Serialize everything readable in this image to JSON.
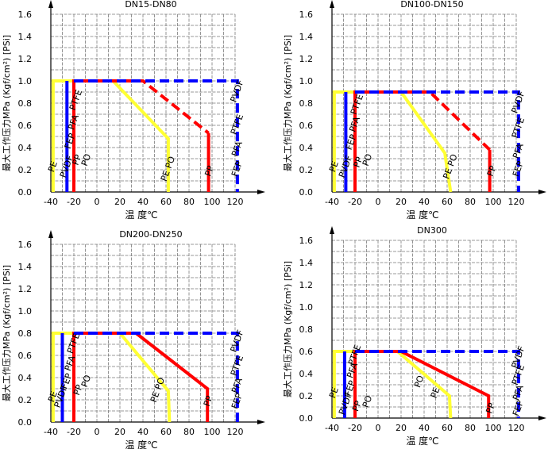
{
  "chart_data": [
    {
      "type": "line",
      "title": "DN15-DN80",
      "xlabel": "温 度℃",
      "ylabel": "最大工作压力MPa (Kgf/cm²) [PSi]",
      "xlim": [
        -40,
        120
      ],
      "ylim": [
        0,
        1.6
      ],
      "x_ticks": [
        "-40",
        "-20",
        "0",
        "20",
        "40",
        "60",
        "80",
        "100",
        "120"
      ],
      "y_ticks": [
        "0.0",
        "0.2",
        "0.4",
        "0.6",
        "0.8",
        "1.0",
        "1.2",
        "1.4",
        "1.6"
      ],
      "grid": true,
      "series": [
        {
          "name": "PE",
          "color": "#ffff33",
          "style": "solid",
          "points": [
            [
              -38,
              0
            ],
            [
              -38,
              1.0
            ],
            [
              -25,
              1.0
            ]
          ]
        },
        {
          "name": "PE",
          "color": "#ffff33",
          "style": "solid",
          "points": [
            [
              -25,
              1.0
            ],
            [
              14,
              1.0
            ],
            [
              62,
              0.48
            ],
            [
              62,
              0
            ]
          ]
        },
        {
          "name": "PVDF",
          "color": "#0000ff",
          "style": "solid",
          "points": [
            [
              -26,
              0
            ],
            [
              -26,
              1.0
            ]
          ]
        },
        {
          "name": "PP PO",
          "color": "#ff0000",
          "style": "solid",
          "points": [
            [
              -20,
              0
            ],
            [
              -20,
              1.0
            ],
            [
              10,
              1.0
            ]
          ]
        },
        {
          "name": "PP",
          "color": "#ff0000",
          "style": "dashed",
          "points": [
            [
              10,
              1.0
            ],
            [
              40,
              1.0
            ],
            [
              97,
              0.53
            ]
          ]
        },
        {
          "name": "PP",
          "color": "#ff0000",
          "style": "solid",
          "points": [
            [
              97,
              0.53
            ],
            [
              97,
              0
            ]
          ]
        },
        {
          "name": "PVDF PTFE PFA FEP",
          "color": "#0000ff",
          "style": "dashed",
          "points": [
            [
              -20,
              1.0
            ],
            [
              122,
              1.0
            ],
            [
              122,
              0
            ]
          ]
        }
      ],
      "annotations": [
        "PE",
        "PVDF",
        "FEP",
        "PFA",
        "PTFE",
        "PP",
        "PO",
        "PE PO",
        "PP",
        "PVDF",
        "PTFE",
        "PFA",
        "FEP"
      ]
    },
    {
      "type": "line",
      "title": "DN100-DN150",
      "xlabel": "温 度℃",
      "ylabel": "最大工作压力MPa (Kgf/cm²) [PSi]",
      "xlim": [
        -40,
        120
      ],
      "ylim": [
        0,
        1.6
      ],
      "x_ticks": [
        "-40",
        "-20",
        "0",
        "20",
        "40",
        "60",
        "80",
        "100",
        "120"
      ],
      "y_ticks": [
        "0.0",
        "0.2",
        "0.4",
        "0.6",
        "0.8",
        "1.0",
        "1.2",
        "1.4",
        "1.6"
      ],
      "grid": true,
      "series": [
        {
          "name": "PE",
          "color": "#ffff33",
          "style": "solid",
          "points": [
            [
              -38,
              0
            ],
            [
              -38,
              0.9
            ],
            [
              -25,
              0.9
            ]
          ]
        },
        {
          "name": "PE",
          "color": "#ffff33",
          "style": "solid",
          "points": [
            [
              -25,
              0.9
            ],
            [
              20,
              0.9
            ],
            [
              58,
              0.35
            ],
            [
              63,
              0
            ]
          ]
        },
        {
          "name": "PVDF",
          "color": "#0000ff",
          "style": "solid",
          "points": [
            [
              -28,
              0
            ],
            [
              -28,
              0.9
            ]
          ]
        },
        {
          "name": "PP PO",
          "color": "#ff0000",
          "style": "solid",
          "points": [
            [
              -20,
              0
            ],
            [
              -20,
              0.9
            ],
            [
              10,
              0.9
            ]
          ]
        },
        {
          "name": "PP",
          "color": "#ff0000",
          "style": "dashed",
          "points": [
            [
              10,
              0.9
            ],
            [
              45,
              0.9
            ],
            [
              97,
              0.38
            ]
          ]
        },
        {
          "name": "PP",
          "color": "#ff0000",
          "style": "solid",
          "points": [
            [
              97,
              0.38
            ],
            [
              97,
              0
            ]
          ]
        },
        {
          "name": "PVDF PTFE PFA FEP",
          "color": "#0000ff",
          "style": "dashed",
          "points": [
            [
              -20,
              0.9
            ],
            [
              122,
              0.9
            ],
            [
              122,
              0
            ]
          ]
        }
      ],
      "annotations": [
        "PE",
        "PVDF",
        "FEP",
        "PFA",
        "PTFE",
        "PP",
        "PO",
        "PE PO",
        "PP",
        "PVDF",
        "PTFE",
        "PFA",
        "FEP"
      ]
    },
    {
      "type": "line",
      "title": "DN200-DN250",
      "xlabel": "温 度℃",
      "ylabel": "最大工作压力MPa (Kgf/cm²) [PSi]",
      "xlim": [
        -40,
        120
      ],
      "ylim": [
        0,
        1.6
      ],
      "x_ticks": [
        "-40",
        "-20",
        "0",
        "20",
        "40",
        "60",
        "80",
        "100",
        "120"
      ],
      "y_ticks": [
        "0.0",
        "0.2",
        "0.4",
        "0.6",
        "0.8",
        "1.0",
        "1.2",
        "1.4",
        "1.6"
      ],
      "grid": true,
      "series": [
        {
          "name": "PE",
          "color": "#ffff33",
          "style": "solid",
          "points": [
            [
              -38,
              0
            ],
            [
              -38,
              0.8
            ],
            [
              -25,
              0.8
            ]
          ]
        },
        {
          "name": "PE",
          "color": "#ffff33",
          "style": "solid",
          "points": [
            [
              -25,
              0.8
            ],
            [
              20,
              0.8
            ],
            [
              62,
              0.28
            ],
            [
              63,
              0
            ]
          ]
        },
        {
          "name": "PVDF",
          "color": "#0000ff",
          "style": "solid",
          "points": [
            [
              -30,
              0
            ],
            [
              -30,
              0.8
            ]
          ]
        },
        {
          "name": "PP PO",
          "color": "#ff0000",
          "style": "solid",
          "points": [
            [
              -20,
              0
            ],
            [
              -20,
              0.8
            ],
            [
              10,
              0.8
            ]
          ]
        },
        {
          "name": "PP",
          "color": "#ff0000",
          "style": "dashed",
          "points": [
            [
              10,
              0.8
            ],
            [
              34,
              0.8
            ]
          ]
        },
        {
          "name": "PP",
          "color": "#ff0000",
          "style": "solid",
          "points": [
            [
              34,
              0.8
            ],
            [
              96,
              0.3
            ],
            [
              96,
              0
            ]
          ]
        },
        {
          "name": "PVDF PTFE PFA FEP",
          "color": "#0000ff",
          "style": "dashed",
          "points": [
            [
              -20,
              0.8
            ],
            [
              122,
              0.8
            ],
            [
              122,
              0
            ]
          ]
        }
      ],
      "annotations": [
        "PE",
        "PVDF",
        "FEP",
        "PFA",
        "PTFE",
        "PP",
        "PO",
        "PE PO",
        "PP",
        "PVDF",
        "PTFE",
        "PFA",
        "FEP"
      ]
    },
    {
      "type": "line",
      "title": "DN300",
      "xlabel": "温 度℃",
      "ylabel": "最大工作压力MPa (Kgf/cm²) [PSi]",
      "xlim": [
        -40,
        120
      ],
      "ylim": [
        0,
        1.6
      ],
      "x_ticks": [
        "-40",
        "-20",
        "0",
        "20",
        "40",
        "60",
        "80",
        "100",
        "120"
      ],
      "y_ticks": [
        "0.0",
        "0.2",
        "0.4",
        "0.6",
        "0.8",
        "1.0",
        "1.2",
        "1.4",
        "1.6"
      ],
      "grid": true,
      "series": [
        {
          "name": "PE",
          "color": "#ffff33",
          "style": "solid",
          "points": [
            [
              -38,
              0
            ],
            [
              -38,
              0.6
            ],
            [
              -25,
              0.6
            ]
          ]
        },
        {
          "name": "PE",
          "color": "#ffff33",
          "style": "solid",
          "points": [
            [
              -25,
              0.6
            ],
            [
              17,
              0.6
            ],
            [
              62,
              0.2
            ],
            [
              63,
              0
            ]
          ]
        },
        {
          "name": "PVDF",
          "color": "#0000ff",
          "style": "solid",
          "points": [
            [
              -29,
              0
            ],
            [
              -29,
              0.6
            ]
          ]
        },
        {
          "name": "PP PO",
          "color": "#ff0000",
          "style": "solid",
          "points": [
            [
              -20,
              0
            ],
            [
              -20,
              0.6
            ],
            [
              20,
              0.6
            ]
          ]
        },
        {
          "name": "PP",
          "color": "#ff0000",
          "style": "solid",
          "points": [
            [
              20,
              0.6
            ],
            [
              96,
              0.2
            ],
            [
              96,
              0
            ]
          ]
        },
        {
          "name": "PVDF PTFE PFA FEP",
          "color": "#0000ff",
          "style": "dashed",
          "points": [
            [
              -20,
              0.6
            ],
            [
              122,
              0.6
            ],
            [
              122,
              0
            ]
          ]
        }
      ],
      "annotations": [
        "PE",
        "PVDF",
        "FEP",
        "PFA",
        "PTFE",
        "PP",
        "PO",
        "PO",
        "PE",
        "PP",
        "PVDF",
        "PTFE",
        "PFA",
        "FEP"
      ]
    }
  ]
}
